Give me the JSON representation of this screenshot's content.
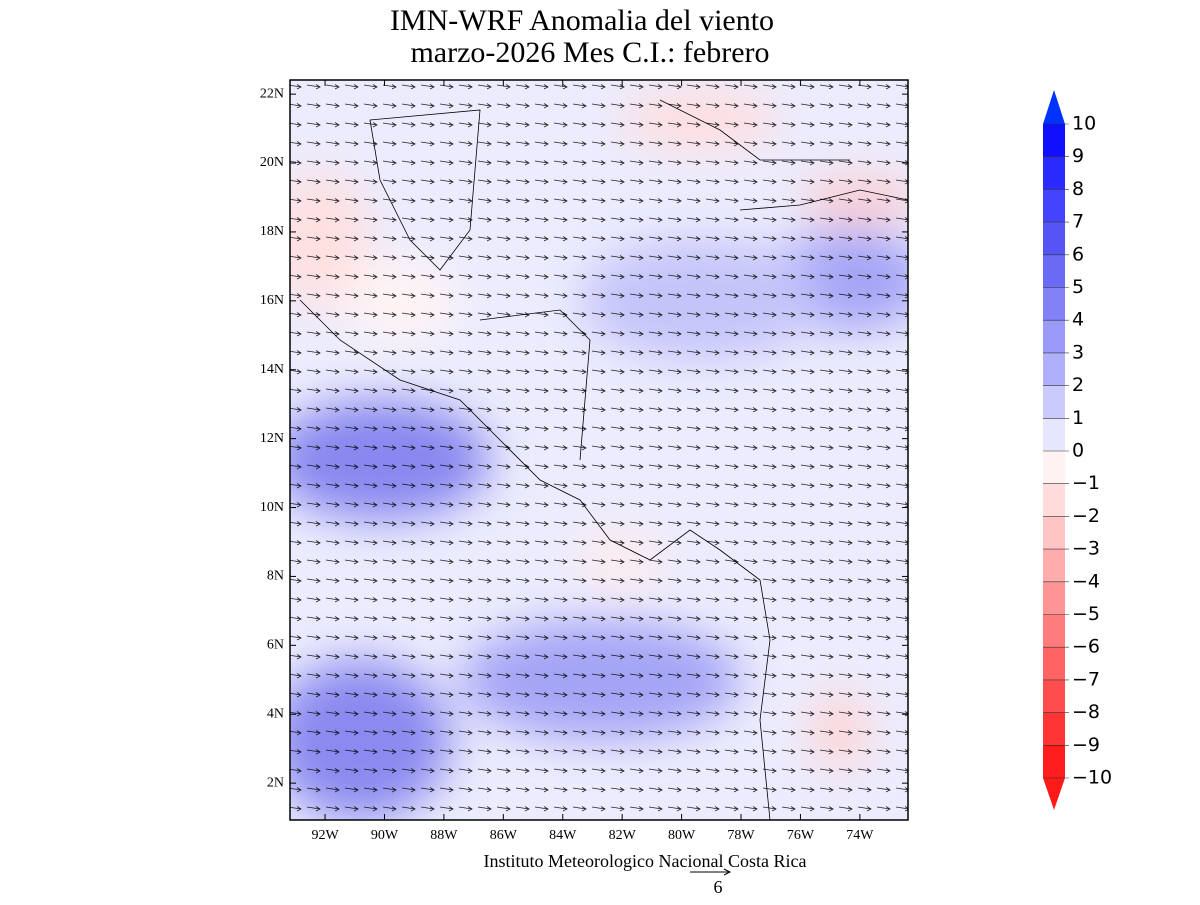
{
  "title": "IMN-WRF Anomalia del viento",
  "subtitle": "marzo-2026 Mes C.I.: febrero",
  "map": {
    "lat_range": [
      0.93,
      22.41
    ],
    "lon_range": [
      -93.18,
      -72.38
    ],
    "lat_ticks": [
      {
        "value": 2,
        "label": "2N"
      },
      {
        "value": 4,
        "label": "4N"
      },
      {
        "value": 6,
        "label": "6N"
      },
      {
        "value": 8,
        "label": "8N"
      },
      {
        "value": 10,
        "label": "10N"
      },
      {
        "value": 12,
        "label": "12N"
      },
      {
        "value": 14,
        "label": "14N"
      },
      {
        "value": 16,
        "label": "16N"
      },
      {
        "value": 18,
        "label": "18N"
      },
      {
        "value": 20,
        "label": "20N"
      },
      {
        "value": 22,
        "label": "22N"
      }
    ],
    "lon_ticks": [
      {
        "value": -92,
        "label": "92W"
      },
      {
        "value": -90,
        "label": "90W"
      },
      {
        "value": -88,
        "label": "88W"
      },
      {
        "value": -86,
        "label": "86W"
      },
      {
        "value": -84,
        "label": "84W"
      },
      {
        "value": -82,
        "label": "82W"
      },
      {
        "value": -80,
        "label": "80W"
      },
      {
        "value": -78,
        "label": "78W"
      },
      {
        "value": -76,
        "label": "76W"
      },
      {
        "value": -74,
        "label": "74W"
      }
    ]
  },
  "colorbar": {
    "ticks": [
      10,
      9,
      8,
      7,
      6,
      5,
      4,
      3,
      2,
      1,
      0,
      {
        "value": -1,
        "label": "−1"
      },
      {
        "value": -2,
        "label": "−2"
      },
      {
        "value": -3,
        "label": "−3"
      },
      {
        "value": -4,
        "label": "−4"
      },
      {
        "value": -5,
        "label": "−5"
      },
      {
        "value": -6,
        "label": "−6"
      },
      {
        "value": -7,
        "label": "−7"
      },
      {
        "value": -8,
        "label": "−8"
      },
      {
        "value": -9,
        "label": "−9"
      },
      {
        "value": -10,
        "label": "−10"
      }
    ],
    "colors": [
      "#1010ff",
      "#2a2aff",
      "#4444ff",
      "#5555f6",
      "#6a6af4",
      "#8282f6",
      "#9a9af8",
      "#b0b0fa",
      "#cacafc",
      "#e6e6fe",
      "#fff2f2",
      "#ffdcdc",
      "#ffc4c4",
      "#ffacac",
      "#ff9494",
      "#ff7c7c",
      "#ff6464",
      "#ff4c4c",
      "#ff3434",
      "#ff1c1c"
    ],
    "over_color": "#0033ff",
    "under_color": "#ff1a1a"
  },
  "footer": "Instituto Meteorologico Nacional Costa Rica",
  "reference_vector": "6"
}
